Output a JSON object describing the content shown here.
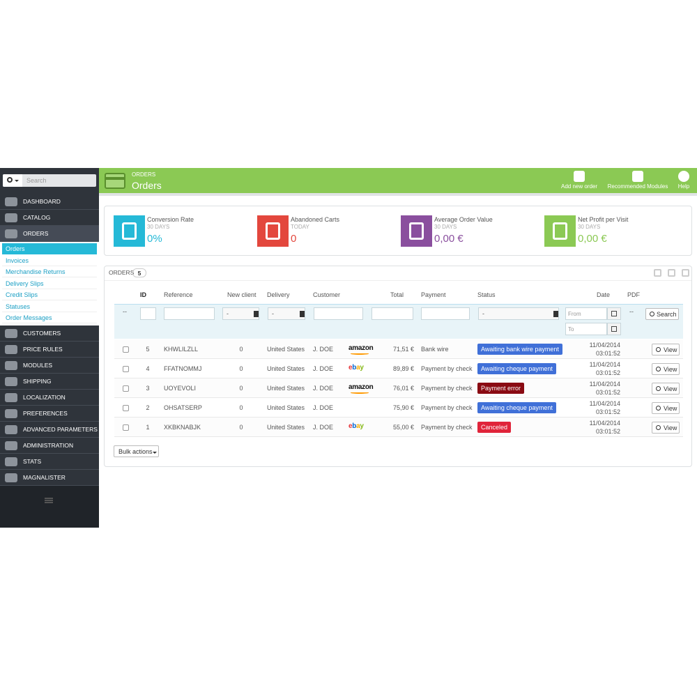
{
  "search_placeholder": "Search",
  "sidebar": {
    "menu_top": [
      "DASHBOARD",
      "CATALOG",
      "ORDERS"
    ],
    "submenu": [
      "Orders",
      "Invoices",
      "Merchandise Returns",
      "Delivery Slips",
      "Credit Slips",
      "Statuses",
      "Order Messages"
    ],
    "menu_bottom": [
      "CUSTOMERS",
      "PRICE RULES",
      "MODULES",
      "SHIPPING",
      "LOCALIZATION",
      "PREFERENCES",
      "ADVANCED PARAMETERS",
      "ADMINISTRATION",
      "STATS",
      "MAGNALISTER"
    ]
  },
  "header": {
    "breadcrumb": "ORDERS",
    "title": "Orders",
    "actions": [
      "Add new order",
      "Recommended Modules",
      "Help"
    ]
  },
  "kpis": [
    {
      "label": "Conversion Rate",
      "period": "30 DAYS",
      "value": "0%",
      "color": "#25b9d7"
    },
    {
      "label": "Abandoned Carts",
      "period": "TODAY",
      "value": "0",
      "color": "#e3473d"
    },
    {
      "label": "Average Order Value",
      "period": "30 DAYS",
      "value": "0,00 €",
      "color": "#8a4f9e"
    },
    {
      "label": "Net Profit per Visit",
      "period": "30 DAYS",
      "value": "0,00 €",
      "color": "#8bc954"
    }
  ],
  "orders": {
    "title": "ORDERS",
    "count": 5,
    "columns": [
      "ID",
      "Reference",
      "New client",
      "Delivery",
      "Customer",
      "Total",
      "Payment",
      "Status",
      "Date",
      "PDF"
    ],
    "filter": {
      "dash": "--",
      "select": "-",
      "from": "From",
      "to": "To",
      "search": "Search"
    },
    "view": "View",
    "bulk": "Bulk actions",
    "rows": [
      {
        "id": 5,
        "reference": "KHWLILZLL",
        "new_client": 0,
        "delivery": "United States",
        "customer": "J. DOE",
        "logo": "amazon",
        "total": "71,51 €",
        "payment": "Bank wire",
        "status": "Awaiting bank wire payment",
        "status_color": "#4070d8",
        "date": "11/04/2014",
        "time": "03:01:52"
      },
      {
        "id": 4,
        "reference": "FFATNOMMJ",
        "new_client": 0,
        "delivery": "United States",
        "customer": "J. DOE",
        "logo": "ebay",
        "total": "89,89 €",
        "payment": "Payment by check",
        "status": "Awaiting cheque payment",
        "status_color": "#4070d8",
        "date": "11/04/2014",
        "time": "03:01:52"
      },
      {
        "id": 3,
        "reference": "UOYEVOLI",
        "new_client": 0,
        "delivery": "United States",
        "customer": "J. DOE",
        "logo": "amazon",
        "total": "76,01 €",
        "payment": "Payment by check",
        "status": "Payment error",
        "status_color": "#8a0b13",
        "date": "11/04/2014",
        "time": "03:01:52"
      },
      {
        "id": 2,
        "reference": "OHSATSERP",
        "new_client": 0,
        "delivery": "United States",
        "customer": "J. DOE",
        "total": "75,90 €",
        "payment": "Payment by check",
        "status": "Awaiting cheque payment",
        "status_color": "#4070d8",
        "date": "11/04/2014",
        "time": "03:01:52"
      },
      {
        "id": 1,
        "reference": "XKBKNABJK",
        "new_client": 0,
        "delivery": "United States",
        "customer": "J. DOE",
        "logo": "ebay",
        "total": "55,00 €",
        "payment": "Payment by check",
        "status": "Canceled",
        "status_color": "#e0243a",
        "date": "11/04/2014",
        "time": "03:01:52"
      }
    ]
  }
}
